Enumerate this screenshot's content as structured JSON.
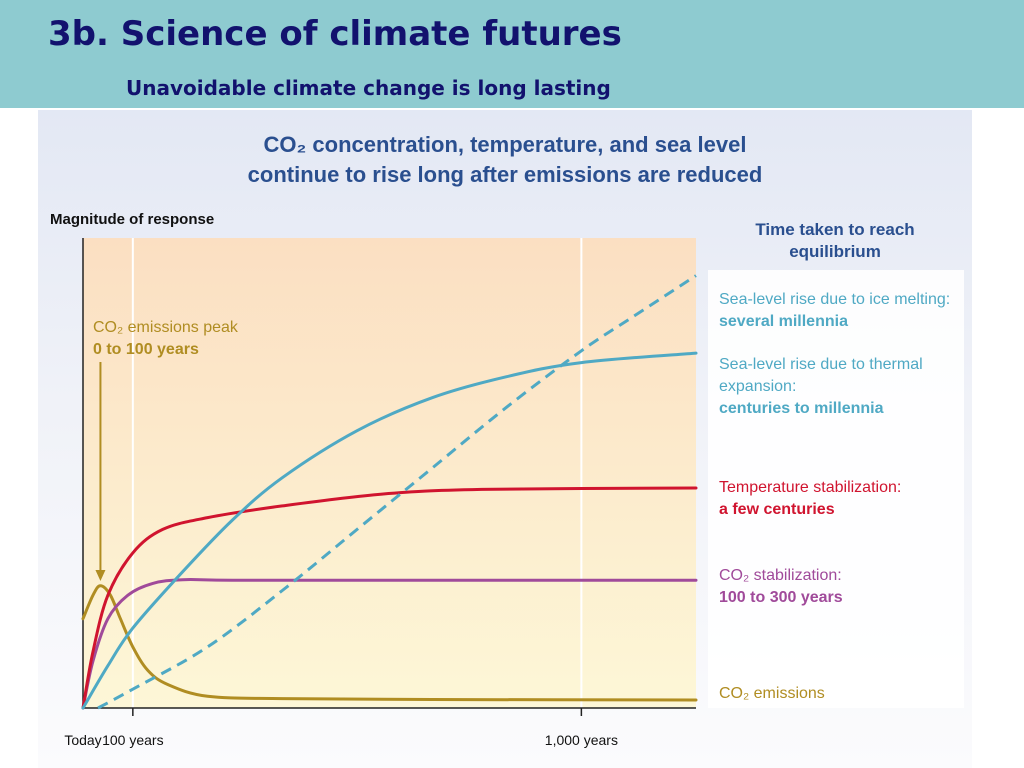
{
  "slide": {
    "title": "3b. Science of climate futures",
    "subtitle": "Unavoidable climate change is long lasting"
  },
  "colors": {
    "header_bg": "#8ecbd0",
    "title_text": "#12126e",
    "figure_title": "#2a4f8f",
    "co2_emissions": "#b08d22",
    "co2_stabilization": "#a04a9a",
    "temperature": "#d0142f",
    "sea_level": "#4fa9c4"
  },
  "chart_data": {
    "type": "line",
    "title_line1": "CO₂ concentration, temperature, and sea level",
    "title_line2": "continue to rise long after emissions are reduced",
    "ylabel": "Magnitude of response",
    "legend_heading": "Time taken to reach equilibrium",
    "x_ticks": [
      {
        "label": "Today",
        "x": 0
      },
      {
        "label": "100 years",
        "x": 100
      },
      {
        "label": "1,000  years",
        "x": 1000
      }
    ],
    "xlim": [
      0,
      1230
    ],
    "ylim": [
      0,
      100
    ],
    "grid": "vertical lines at 100 and 1,000 years",
    "annotation": {
      "line1": "CO₂ emissions peak",
      "line2": "0 to 100 years",
      "arrow_to_x": 35
    },
    "series": [
      {
        "name": "CO₂ emissions",
        "label": "CO₂ emissions",
        "detail": "",
        "style": "solid",
        "color": "#b08d22",
        "points": [
          [
            0,
            19
          ],
          [
            20,
            24
          ],
          [
            35,
            26
          ],
          [
            55,
            24
          ],
          [
            75,
            19
          ],
          [
            100,
            13
          ],
          [
            130,
            8
          ],
          [
            170,
            5
          ],
          [
            250,
            2.5
          ],
          [
            400,
            2
          ],
          [
            700,
            1.8
          ],
          [
            1230,
            1.7
          ]
        ]
      },
      {
        "name": "CO₂ stabilization",
        "label": "CO₂ stabilization:",
        "detail": "100 to 300 years",
        "style": "solid",
        "color": "#a04a9a",
        "points": [
          [
            0,
            0
          ],
          [
            20,
            10
          ],
          [
            50,
            19
          ],
          [
            90,
            24
          ],
          [
            140,
            26.5
          ],
          [
            200,
            27.3
          ],
          [
            300,
            27.2
          ],
          [
            600,
            27.2
          ],
          [
            1230,
            27.2
          ]
        ]
      },
      {
        "name": "Temperature stabilization",
        "label": "Temperature stabilization:",
        "detail": "a few centuries",
        "style": "solid",
        "color": "#d0142f",
        "points": [
          [
            0,
            0
          ],
          [
            20,
            12
          ],
          [
            50,
            24
          ],
          [
            100,
            33
          ],
          [
            160,
            38
          ],
          [
            250,
            40.5
          ],
          [
            400,
            43
          ],
          [
            600,
            45.5
          ],
          [
            800,
            46.5
          ],
          [
            1230,
            46.8
          ]
        ]
      },
      {
        "name": "Sea-level rise due to thermal expansion",
        "label": "Sea-level rise due to thermal expansion:",
        "detail": "centuries to millennia",
        "style": "solid",
        "color": "#4fa9c4",
        "points": [
          [
            0,
            0
          ],
          [
            50,
            9
          ],
          [
            100,
            17
          ],
          [
            200,
            29
          ],
          [
            300,
            40
          ],
          [
            400,
            49
          ],
          [
            550,
            59
          ],
          [
            700,
            66
          ],
          [
            850,
            70.5
          ],
          [
            1000,
            73.5
          ],
          [
            1230,
            75.5
          ]
        ]
      },
      {
        "name": "Sea-level rise due to ice melting",
        "label": "Sea-level rise due to ice melting:",
        "detail": "several millennia",
        "style": "dashed",
        "color": "#4fa9c4",
        "points": [
          [
            30,
            0
          ],
          [
            100,
            4
          ],
          [
            250,
            13
          ],
          [
            400,
            25
          ],
          [
            550,
            38
          ],
          [
            700,
            51
          ],
          [
            850,
            64
          ],
          [
            1000,
            76
          ],
          [
            1100,
            83
          ],
          [
            1230,
            92
          ]
        ]
      }
    ]
  }
}
